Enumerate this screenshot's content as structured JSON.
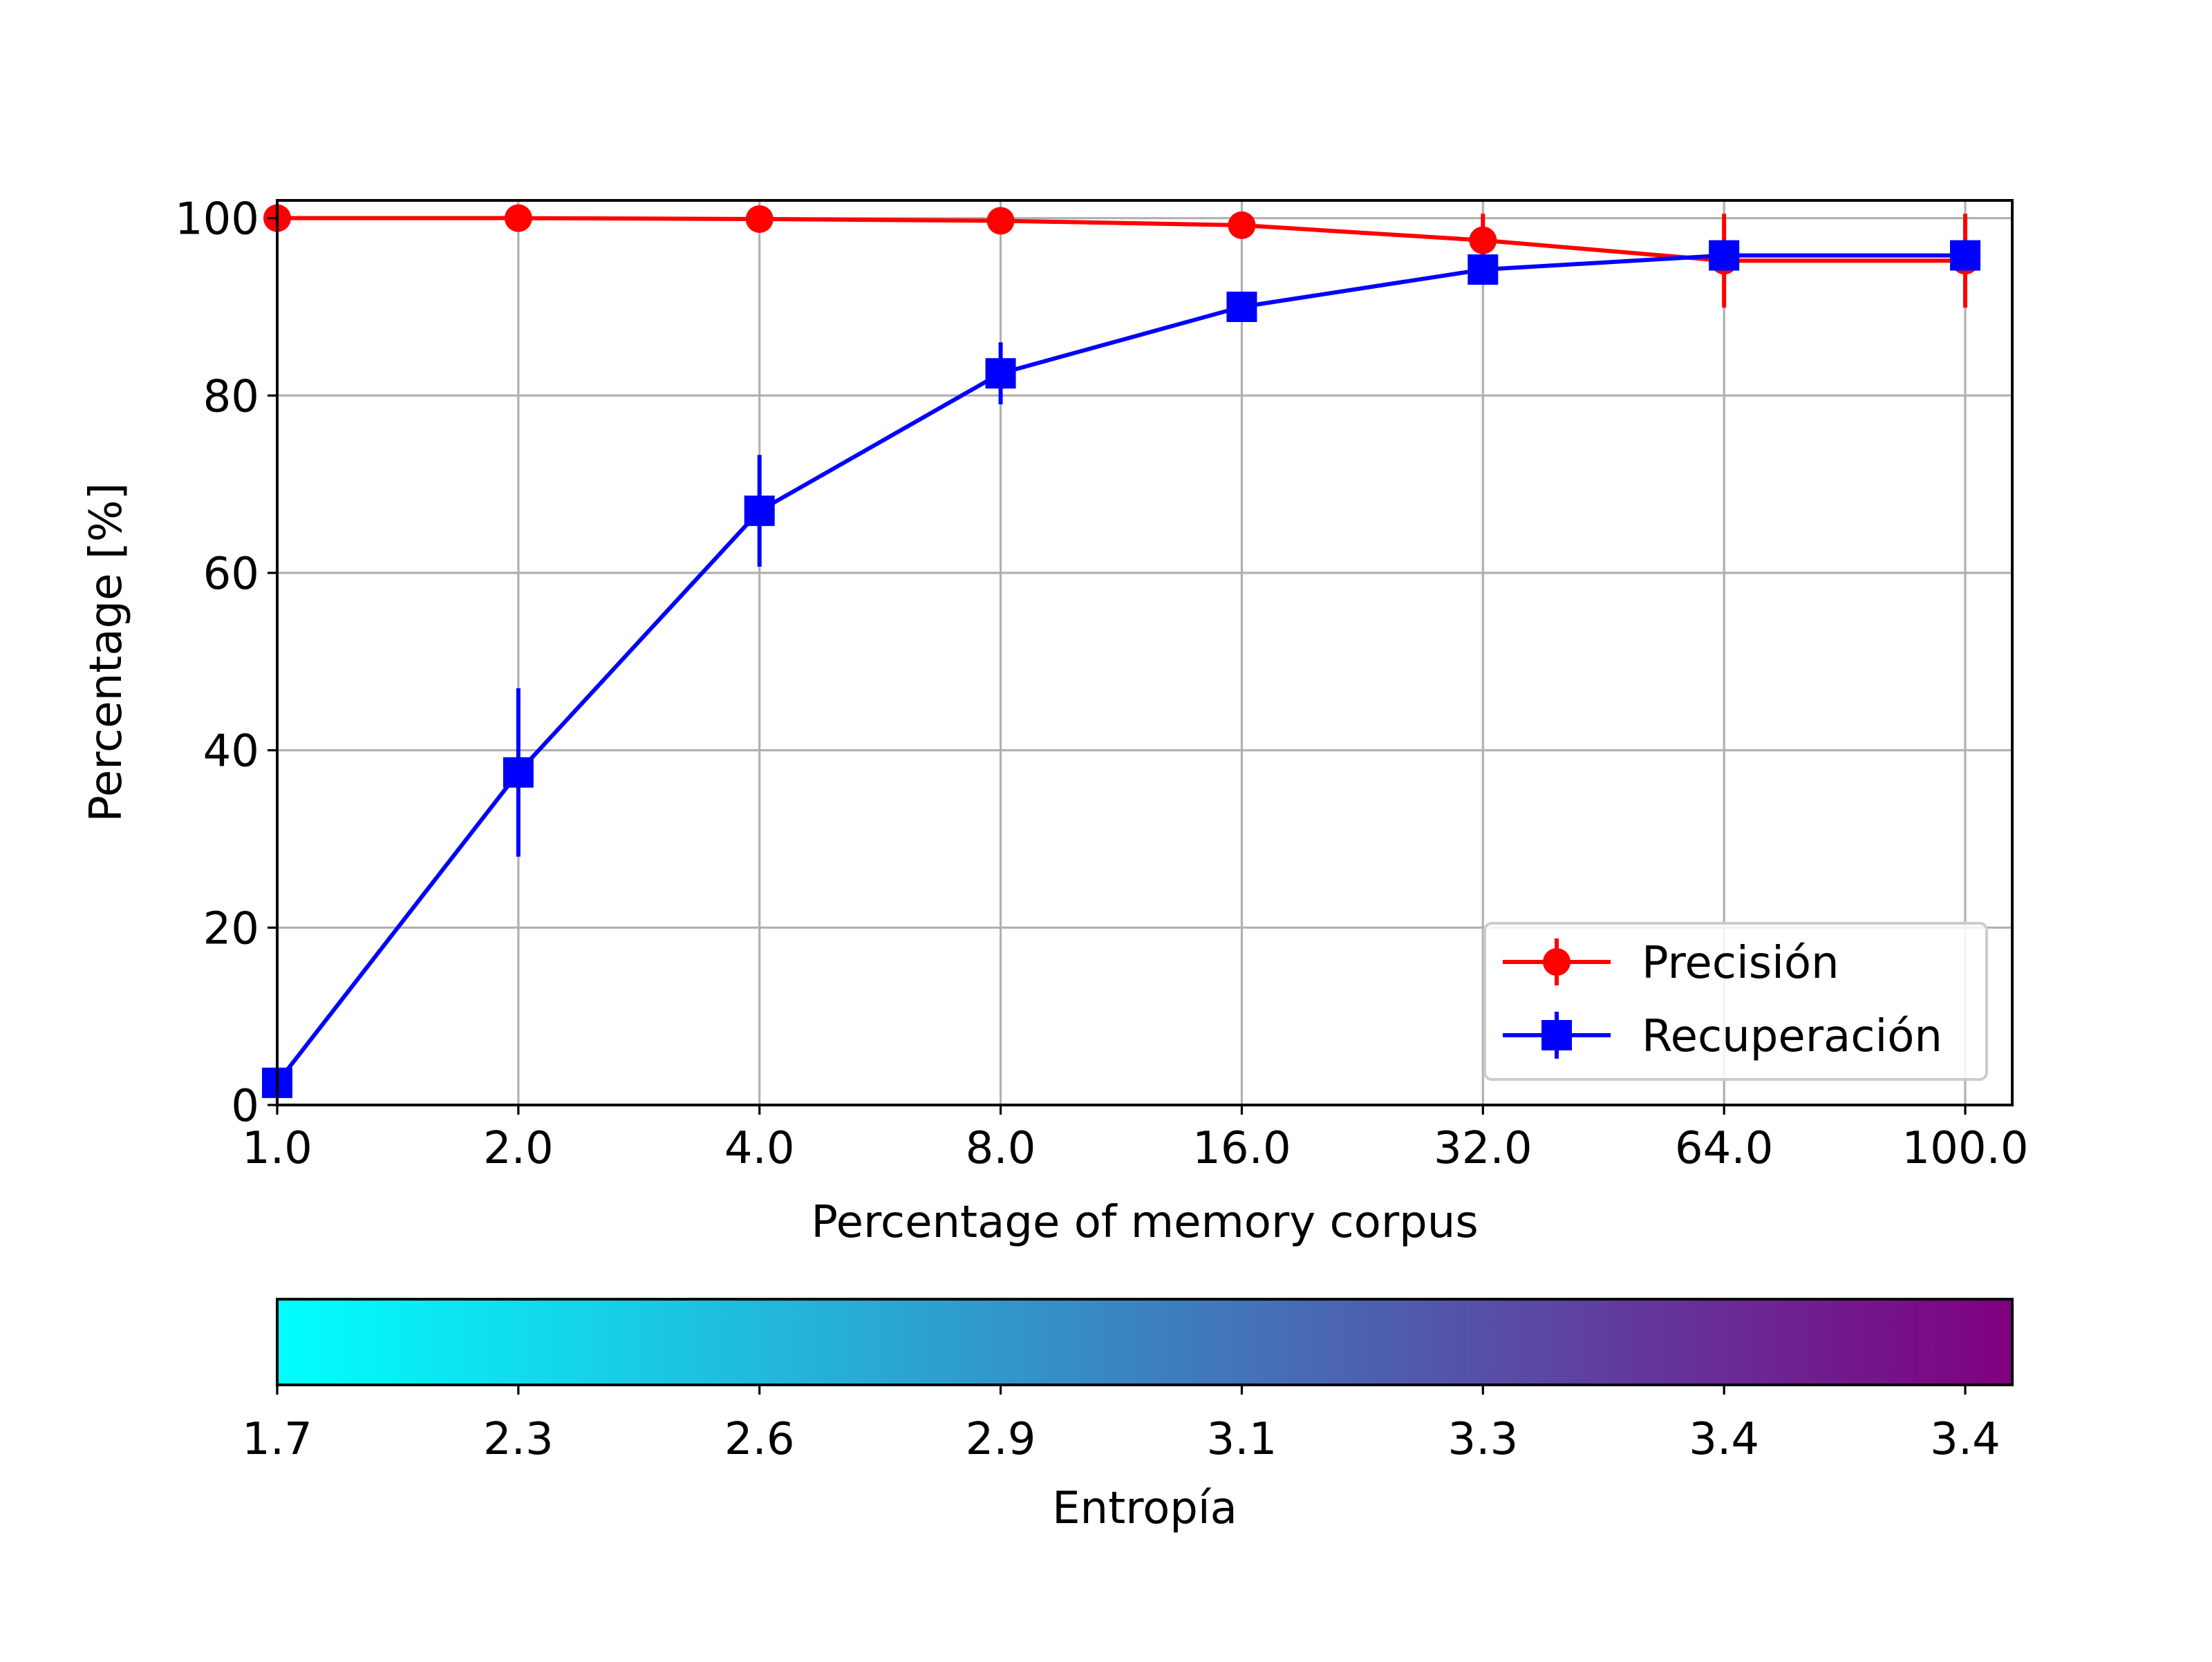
{
  "chart_data": {
    "type": "line",
    "title": "",
    "xlabel": "Percentage of memory corpus",
    "ylabel": "Percentage [%]",
    "x_tick_labels": [
      "1.0",
      "2.0",
      "4.0",
      "8.0",
      "16.0",
      "32.0",
      "64.0",
      "100.0"
    ],
    "ylim": [
      0,
      102
    ],
    "y_ticks": [
      0,
      20,
      40,
      60,
      80,
      100
    ],
    "grid": true,
    "legend_position": "lower-right",
    "series": [
      {
        "name": "Precisión",
        "color": "#ff0000",
        "marker": "circle",
        "values": [
          100,
          100,
          99.9,
          99.7,
          99.2,
          97.5,
          95.2,
          95.2
        ],
        "errors": [
          0,
          0,
          0,
          0,
          0,
          3.0,
          5.3,
          5.3
        ]
      },
      {
        "name": "Recuperación",
        "color": "#0000ff",
        "marker": "square",
        "values": [
          2.5,
          37.5,
          67.0,
          82.5,
          90.0,
          94.2,
          95.8,
          95.8
        ],
        "errors": [
          1.5,
          9.5,
          6.3,
          3.5,
          1.0,
          0.5,
          0.3,
          0.3
        ]
      }
    ],
    "colorbar": {
      "label": "Entropía",
      "tick_labels": [
        "1.7",
        "2.3",
        "2.6",
        "2.9",
        "3.1",
        "3.3",
        "3.4",
        "3.4"
      ],
      "color_start": "#00ffff",
      "color_mid": "#3b82c0",
      "color_end": "#800080"
    }
  }
}
